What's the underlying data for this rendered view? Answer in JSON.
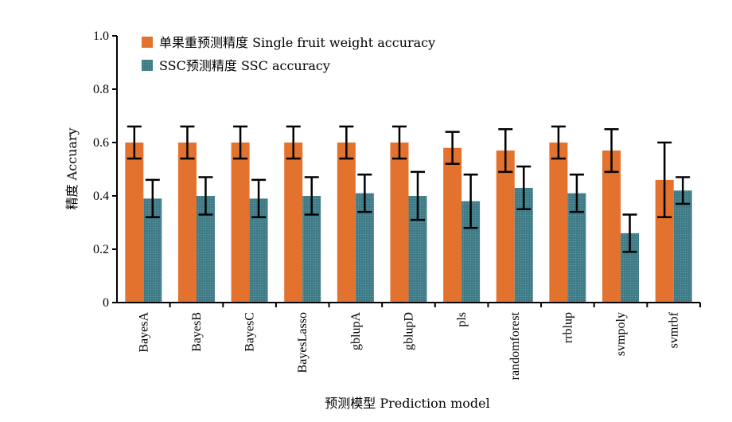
{
  "chart_data": {
    "type": "bar",
    "categories": [
      "BayesA",
      "BayesB",
      "BayesC",
      "BayesLasso",
      "gblupA",
      "gblupD",
      "pls",
      "randomforest",
      "rrblup",
      "svmpoly",
      "svmrbf"
    ],
    "series": [
      {
        "name": "单果重预测精度 Single fruit weight accuracy",
        "color": "#E2722E",
        "values": [
          0.6,
          0.6,
          0.6,
          0.6,
          0.6,
          0.6,
          0.58,
          0.57,
          0.6,
          0.57,
          0.46
        ],
        "errors": [
          0.06,
          0.06,
          0.06,
          0.06,
          0.06,
          0.06,
          0.06,
          0.08,
          0.06,
          0.08,
          0.14
        ]
      },
      {
        "name": "SSC预测精度 SSC accuracy",
        "color": "#3F7C87",
        "values": [
          0.39,
          0.4,
          0.39,
          0.4,
          0.41,
          0.4,
          0.38,
          0.43,
          0.41,
          0.26,
          0.42
        ],
        "errors": [
          0.07,
          0.07,
          0.07,
          0.07,
          0.07,
          0.09,
          0.1,
          0.08,
          0.07,
          0.07,
          0.05
        ]
      }
    ],
    "xlabel": "预测模型 Prediction model",
    "ylabel": "精度 Accuary",
    "ylim": [
      0,
      1.0
    ],
    "yticks": [
      0,
      0.2,
      0.4,
      0.6,
      0.8,
      1.0
    ],
    "ytick_labels": [
      "0",
      "0.2",
      "0.4",
      "0.6",
      "0.8",
      "1.0"
    ],
    "grid": false,
    "legend_position": "top-left"
  }
}
